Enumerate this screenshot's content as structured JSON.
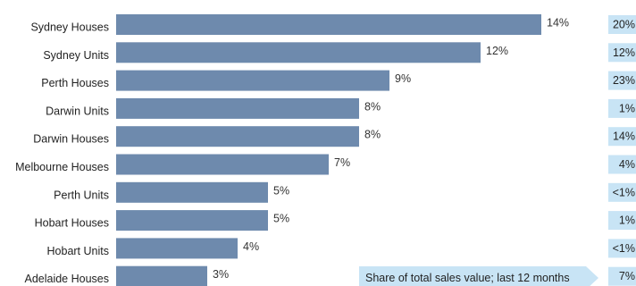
{
  "colors": {
    "bar": "#6e8aad",
    "share_bg": "#c8e4f5",
    "note_bg": "#c8e4f5"
  },
  "chart_data": {
    "type": "bar",
    "orientation": "horizontal",
    "categories": [
      "Sydney Houses",
      "Sydney Units",
      "Perth Houses",
      "Darwin Units",
      "Darwin Houses",
      "Melbourne Houses",
      "Perth Units",
      "Hobart Houses",
      "Hobart Units",
      "Adelaide Houses"
    ],
    "values": [
      14,
      12,
      9,
      8,
      8,
      7,
      5,
      5,
      4,
      3
    ],
    "value_labels": [
      "14%",
      "12%",
      "9%",
      "8%",
      "8%",
      "7%",
      "5%",
      "5%",
      "4%",
      "3%"
    ],
    "share_labels": [
      "20%",
      "12%",
      "23%",
      "1%",
      "14%",
      "4%",
      "<1%",
      "1%",
      "<1%",
      "7%"
    ],
    "share_note": "Share of total sales value; last 12 months",
    "title": "",
    "xlabel": "",
    "ylabel": "",
    "xlim": [
      0,
      15
    ],
    "grid": false
  }
}
